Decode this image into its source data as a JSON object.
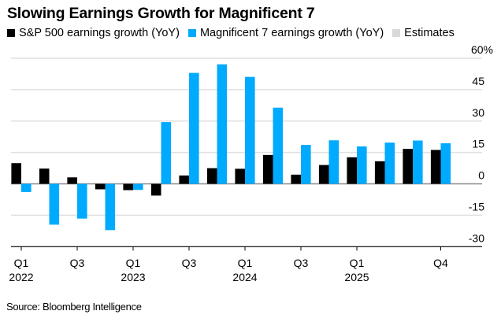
{
  "chart_data": {
    "type": "bar",
    "title": "Slowing Earnings Growth for Magnificent 7",
    "xlabel": "",
    "ylabel": "",
    "ylim": [
      -30,
      60
    ],
    "y_ticks": [
      60,
      45,
      30,
      15,
      0,
      -15,
      -30
    ],
    "y_tick_labels": [
      "60%",
      "45",
      "30",
      "15",
      "0",
      "-15",
      "-30"
    ],
    "grid": true,
    "legend_position": "top-left",
    "legend": [
      {
        "name": "S&P 500 earnings growth (YoY)",
        "color": "#000000"
      },
      {
        "name": "Magnificent 7 earnings growth (YoY)",
        "color": "#00AAFF"
      },
      {
        "name": "Estimates",
        "color": "#D9D9D9"
      }
    ],
    "categories": [
      "Q1 2022",
      "Q2 2022",
      "Q3 2022",
      "Q4 2022",
      "Q1 2023",
      "Q2 2023",
      "Q3 2023",
      "Q4 2023",
      "Q1 2024",
      "Q2 2024",
      "Q3 2024",
      "Q4 2024",
      "Q1 2025",
      "Q2 2025",
      "Q3 2025",
      "Q4 2025"
    ],
    "x_tick_labels": [
      {
        "index": 0,
        "line1": "Q1",
        "line2": "2022"
      },
      {
        "index": 2,
        "line1": "Q3",
        "line2": ""
      },
      {
        "index": 4,
        "line1": "Q1",
        "line2": "2023"
      },
      {
        "index": 6,
        "line1": "Q3",
        "line2": ""
      },
      {
        "index": 8,
        "line1": "Q1",
        "line2": "2024"
      },
      {
        "index": 10,
        "line1": "Q3",
        "line2": ""
      },
      {
        "index": 12,
        "line1": "Q1",
        "line2": "2025"
      },
      {
        "index": 15,
        "line1": "Q4",
        "line2": ""
      }
    ],
    "series": [
      {
        "name": "S&P 500 earnings growth (YoY)",
        "color": "#000000",
        "values": [
          9.9,
          7.3,
          3.1,
          -2.6,
          -3.0,
          -5.6,
          4.0,
          7.5,
          7.2,
          13.8,
          4.4,
          9.0,
          12.7,
          10.8,
          16.7,
          16.2
        ]
      },
      {
        "name": "Magnificent 7 earnings growth (YoY)",
        "color": "#00AAFF",
        "values": [
          -3.9,
          -19.5,
          -16.6,
          -22.1,
          -2.9,
          29.5,
          53.0,
          57.1,
          51.1,
          36.4,
          18.6,
          20.8,
          17.9,
          19.7,
          20.7,
          19.4
        ]
      }
    ],
    "source": "Source: Bloomberg Intelligence"
  }
}
